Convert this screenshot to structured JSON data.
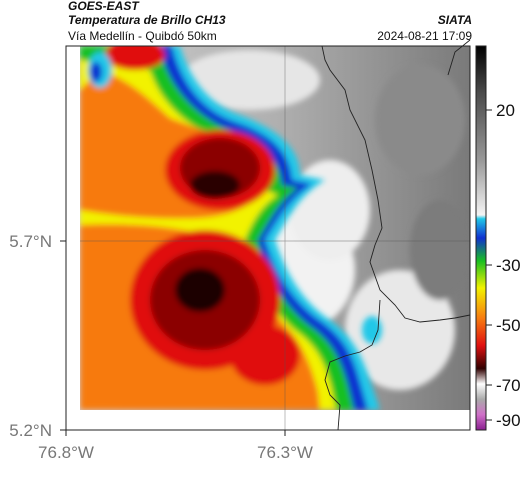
{
  "header": {
    "title": "GOES-EAST",
    "subtitle": "Temperatura de Brillo CH13",
    "route": "Vía Medellín - Quibdó 50km",
    "brand": "SIATA",
    "timestamp": "2024-08-21 17:09"
  },
  "map": {
    "lat_ticks": [
      "5.7°N",
      "5.2°N"
    ],
    "lon_ticks": [
      "76.8°W",
      "76.3°W"
    ],
    "colorbar_ticks": [
      "20",
      "-30",
      "-50",
      "-70",
      "-90"
    ],
    "palette": {
      "cold_core": "#1a0000",
      "dark_red": "#8b0000",
      "red": "#e01010",
      "orange": "#f77a10",
      "yellow": "#f2f200",
      "green": "#19c020",
      "blue": "#1030d0",
      "cyan": "#20c8e8",
      "light_gray": "#e8e8e8",
      "gray": "#909090"
    }
  }
}
